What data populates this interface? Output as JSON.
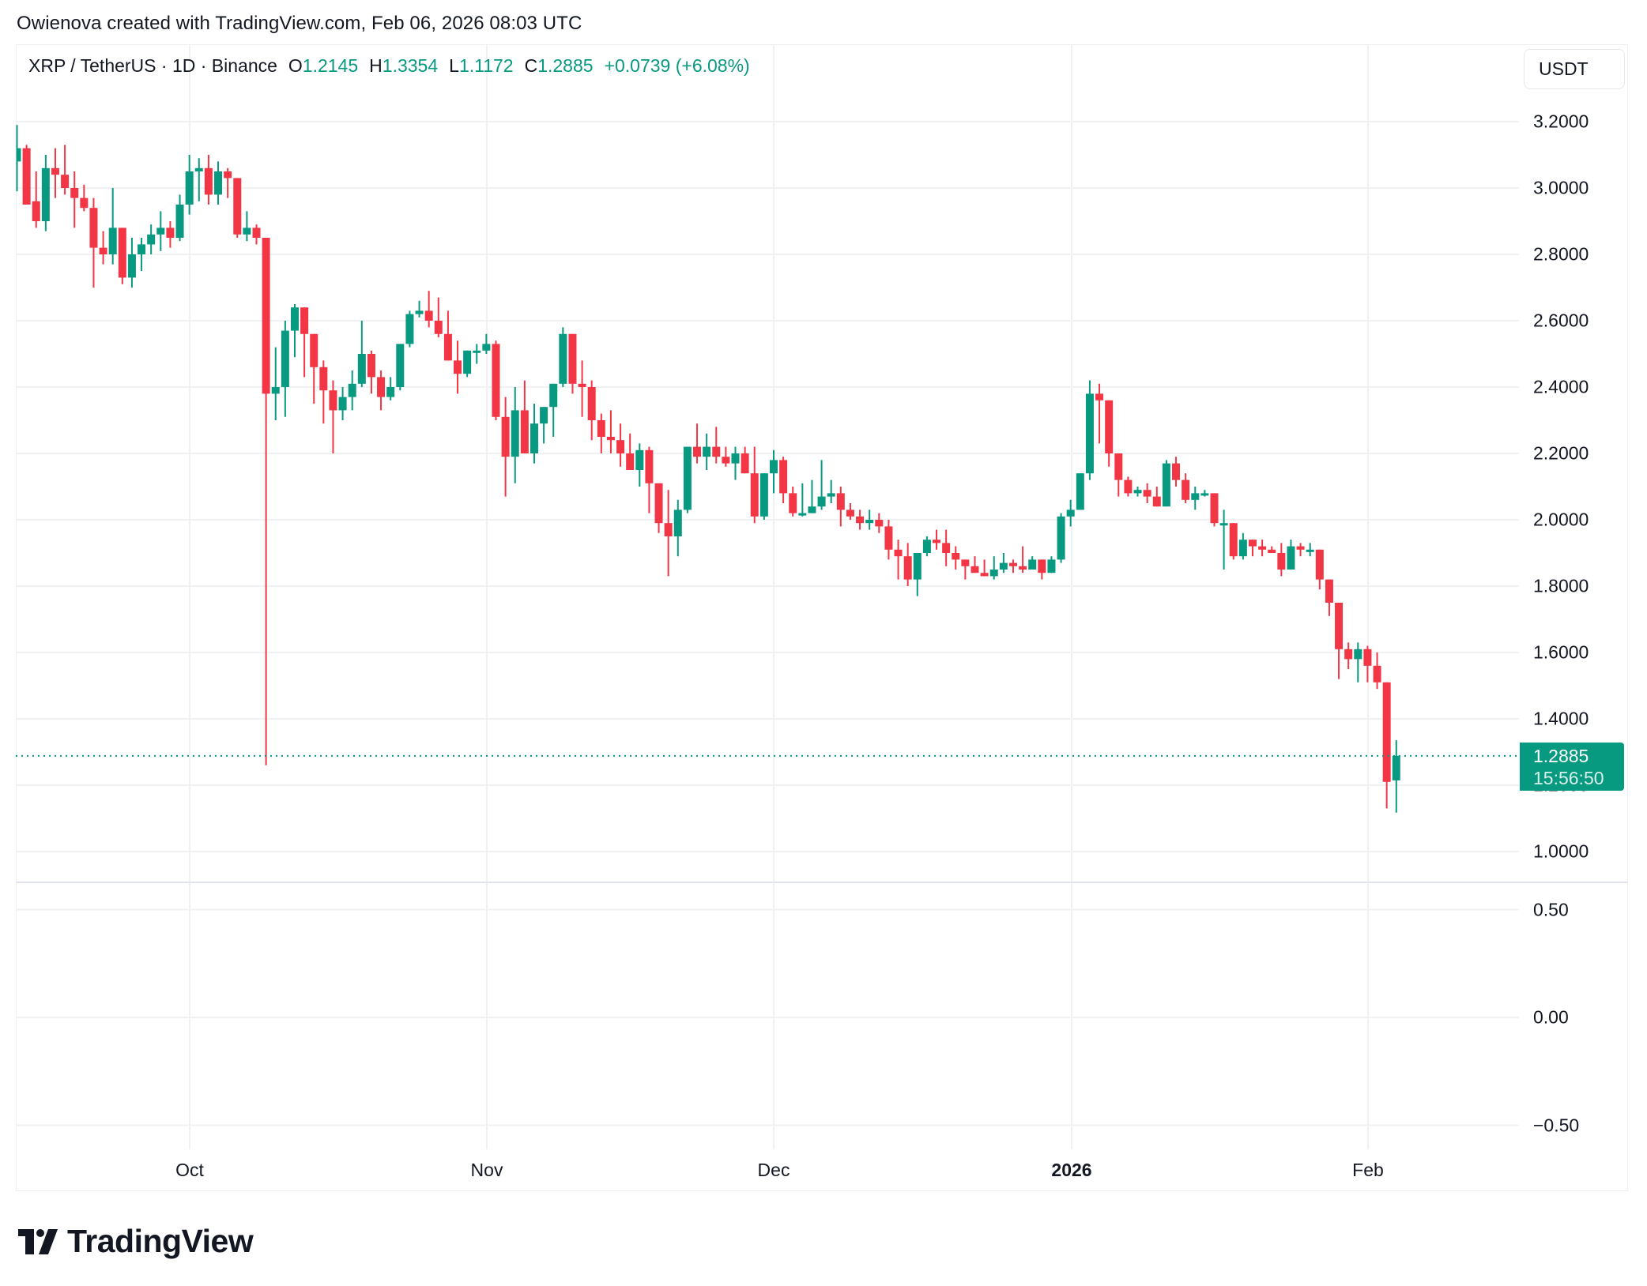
{
  "credit": "Owienova created with TradingView.com, Feb 06, 2026 08:03 UTC",
  "legend": {
    "symbol": "XRP / TetherUS · 1D · Binance",
    "o_label": "O",
    "o_value": "1.2145",
    "h_label": "H",
    "h_value": "1.3354",
    "l_label": "L",
    "l_value": "1.1172",
    "c_label": "C",
    "c_value": "1.2885",
    "change": "+0.0739 (+6.08%)"
  },
  "currency_button": "USDT",
  "last_price": {
    "price": "1.2885",
    "countdown": "15:56:50"
  },
  "price_axis": [
    "3.2000",
    "3.0000",
    "2.8000",
    "2.6000",
    "2.4000",
    "2.2000",
    "2.0000",
    "1.8000",
    "1.6000",
    "1.4000",
    "1.2000",
    "1.0000"
  ],
  "indicator_axis": [
    "0.50",
    "0.00",
    "−0.50"
  ],
  "time_axis": [
    {
      "label": "Oct",
      "bold": false
    },
    {
      "label": "Nov",
      "bold": false
    },
    {
      "label": "Dec",
      "bold": false
    },
    {
      "label": "2026",
      "bold": true
    },
    {
      "label": "Feb",
      "bold": false
    }
  ],
  "logo_text": "TradingView",
  "colors": {
    "up": "#089981",
    "down": "#F23645",
    "grid": "#f0f1f3",
    "text": "#131722"
  },
  "chart_data": {
    "type": "candlestick",
    "title": "XRP / TetherUS · 1D · Binance",
    "xlabel": "",
    "ylabel": "USDT",
    "ylim": [
      0.88,
      3.29
    ],
    "grid": true,
    "legend_position": "top-left",
    "start_date": "2025-09-13",
    "last": {
      "open": 1.2145,
      "high": 1.3354,
      "low": 1.1172,
      "close": 1.2885,
      "change": 0.0739,
      "change_pct": 6.08
    },
    "indicator_pane": {
      "ylim": [
        -0.6,
        0.6
      ],
      "ticks": [
        0.5,
        0.0,
        -0.5
      ],
      "values": []
    },
    "candles": [
      [
        3.08,
        3.19,
        2.99,
        3.12
      ],
      [
        3.12,
        3.13,
        2.95,
        2.95
      ],
      [
        2.96,
        3.05,
        2.88,
        2.9
      ],
      [
        2.9,
        3.1,
        2.87,
        3.06
      ],
      [
        3.06,
        3.12,
        2.97,
        3.04
      ],
      [
        3.04,
        3.13,
        2.98,
        3.0
      ],
      [
        3.0,
        3.05,
        2.88,
        2.97
      ],
      [
        2.97,
        3.01,
        2.93,
        2.94
      ],
      [
        2.94,
        2.97,
        2.7,
        2.82
      ],
      [
        2.82,
        2.87,
        2.77,
        2.8
      ],
      [
        2.8,
        3.0,
        2.77,
        2.88
      ],
      [
        2.88,
        2.88,
        2.71,
        2.73
      ],
      [
        2.73,
        2.85,
        2.7,
        2.8
      ],
      [
        2.8,
        2.85,
        2.75,
        2.83
      ],
      [
        2.83,
        2.89,
        2.8,
        2.86
      ],
      [
        2.86,
        2.93,
        2.81,
        2.88
      ],
      [
        2.88,
        2.9,
        2.82,
        2.85
      ],
      [
        2.85,
        2.98,
        2.84,
        2.95
      ],
      [
        2.95,
        3.1,
        2.92,
        3.05
      ],
      [
        3.05,
        3.09,
        2.96,
        3.06
      ],
      [
        3.06,
        3.1,
        2.95,
        2.98
      ],
      [
        2.98,
        3.08,
        2.95,
        3.05
      ],
      [
        3.05,
        3.06,
        2.97,
        3.03
      ],
      [
        3.03,
        3.01,
        2.85,
        2.86
      ],
      [
        2.86,
        2.93,
        2.84,
        2.88
      ],
      [
        2.88,
        2.89,
        2.83,
        2.85
      ],
      [
        2.85,
        2.84,
        1.26,
        2.38
      ],
      [
        2.38,
        2.52,
        2.3,
        2.4
      ],
      [
        2.4,
        2.6,
        2.31,
        2.57
      ],
      [
        2.57,
        2.65,
        2.49,
        2.64
      ],
      [
        2.64,
        2.62,
        2.43,
        2.56
      ],
      [
        2.56,
        2.55,
        2.35,
        2.46
      ],
      [
        2.46,
        2.48,
        2.29,
        2.39
      ],
      [
        2.39,
        2.42,
        2.2,
        2.33
      ],
      [
        2.33,
        2.4,
        2.3,
        2.37
      ],
      [
        2.37,
        2.45,
        2.33,
        2.41
      ],
      [
        2.41,
        2.6,
        2.4,
        2.5
      ],
      [
        2.5,
        2.51,
        2.38,
        2.43
      ],
      [
        2.43,
        2.45,
        2.33,
        2.37
      ],
      [
        2.37,
        2.43,
        2.36,
        2.4
      ],
      [
        2.4,
        2.53,
        2.39,
        2.53
      ],
      [
        2.53,
        2.63,
        2.52,
        2.62
      ],
      [
        2.62,
        2.66,
        2.61,
        2.63
      ],
      [
        2.63,
        2.69,
        2.58,
        2.6
      ],
      [
        2.6,
        2.67,
        2.55,
        2.56
      ],
      [
        2.56,
        2.63,
        2.51,
        2.48
      ],
      [
        2.48,
        2.54,
        2.38,
        2.44
      ],
      [
        2.44,
        2.51,
        2.43,
        2.51
      ],
      [
        2.51,
        2.53,
        2.47,
        2.51
      ],
      [
        2.51,
        2.56,
        2.5,
        2.53
      ],
      [
        2.53,
        2.54,
        2.3,
        2.31
      ],
      [
        2.31,
        2.37,
        2.07,
        2.19
      ],
      [
        2.19,
        2.4,
        2.11,
        2.33
      ],
      [
        2.33,
        2.42,
        2.2,
        2.2
      ],
      [
        2.2,
        2.35,
        2.17,
        2.29
      ],
      [
        2.29,
        2.34,
        2.23,
        2.34
      ],
      [
        2.34,
        2.38,
        2.25,
        2.41
      ],
      [
        2.41,
        2.58,
        2.4,
        2.56
      ],
      [
        2.56,
        2.54,
        2.38,
        2.41
      ],
      [
        2.41,
        2.48,
        2.31,
        2.4
      ],
      [
        2.4,
        2.42,
        2.24,
        2.3
      ],
      [
        2.3,
        2.32,
        2.2,
        2.25
      ],
      [
        2.25,
        2.33,
        2.2,
        2.24
      ],
      [
        2.24,
        2.29,
        2.16,
        2.2
      ],
      [
        2.2,
        2.26,
        2.16,
        2.15
      ],
      [
        2.15,
        2.23,
        2.1,
        2.21
      ],
      [
        2.21,
        2.22,
        2.02,
        2.11
      ],
      [
        2.11,
        2.08,
        1.96,
        1.99
      ],
      [
        1.99,
        2.09,
        1.83,
        1.95
      ],
      [
        1.95,
        2.06,
        1.89,
        2.03
      ],
      [
        2.03,
        2.13,
        2.02,
        2.22
      ],
      [
        2.22,
        2.29,
        2.17,
        2.19
      ],
      [
        2.19,
        2.26,
        2.15,
        2.22
      ],
      [
        2.22,
        2.28,
        2.17,
        2.19
      ],
      [
        2.19,
        2.22,
        2.16,
        2.17
      ],
      [
        2.17,
        2.22,
        2.12,
        2.2
      ],
      [
        2.2,
        2.22,
        2.17,
        2.14
      ],
      [
        2.14,
        2.22,
        1.99,
        2.01
      ],
      [
        2.01,
        2.13,
        2.0,
        2.14
      ],
      [
        2.14,
        2.21,
        2.08,
        2.18
      ],
      [
        2.18,
        2.19,
        2.05,
        2.08
      ],
      [
        2.08,
        2.1,
        2.01,
        2.02
      ],
      [
        2.02,
        2.11,
        2.01,
        2.02
      ],
      [
        2.02,
        2.12,
        2.02,
        2.04
      ],
      [
        2.04,
        2.18,
        2.03,
        2.07
      ],
      [
        2.07,
        2.12,
        2.05,
        2.08
      ],
      [
        2.08,
        2.1,
        1.98,
        2.03
      ],
      [
        2.03,
        2.05,
        2.0,
        2.01
      ],
      [
        2.01,
        2.03,
        1.97,
        1.99
      ],
      [
        1.99,
        2.03,
        1.97,
        2.0
      ],
      [
        2.0,
        2.02,
        1.96,
        1.98
      ],
      [
        1.98,
        2.0,
        1.88,
        1.91
      ],
      [
        1.91,
        1.94,
        1.82,
        1.89
      ],
      [
        1.89,
        1.93,
        1.8,
        1.82
      ],
      [
        1.82,
        1.89,
        1.77,
        1.9
      ],
      [
        1.9,
        1.95,
        1.89,
        1.94
      ],
      [
        1.94,
        1.97,
        1.91,
        1.93
      ],
      [
        1.93,
        1.97,
        1.86,
        1.9
      ],
      [
        1.9,
        1.92,
        1.85,
        1.88
      ],
      [
        1.88,
        1.88,
        1.82,
        1.86
      ],
      [
        1.86,
        1.89,
        1.84,
        1.84
      ],
      [
        1.84,
        1.88,
        1.83,
        1.83
      ],
      [
        1.83,
        1.89,
        1.82,
        1.85
      ],
      [
        1.85,
        1.9,
        1.84,
        1.87
      ],
      [
        1.87,
        1.88,
        1.84,
        1.86
      ],
      [
        1.86,
        1.92,
        1.84,
        1.85
      ],
      [
        1.85,
        1.89,
        1.85,
        1.88
      ],
      [
        1.88,
        1.88,
        1.82,
        1.84
      ],
      [
        1.84,
        1.89,
        1.84,
        1.88
      ],
      [
        1.88,
        2.02,
        1.87,
        2.01
      ],
      [
        2.01,
        2.06,
        1.98,
        2.03
      ],
      [
        2.03,
        2.14,
        2.03,
        2.14
      ],
      [
        2.14,
        2.42,
        2.12,
        2.38
      ],
      [
        2.38,
        2.41,
        2.23,
        2.36
      ],
      [
        2.36,
        2.34,
        2.16,
        2.2
      ],
      [
        2.2,
        2.16,
        2.07,
        2.12
      ],
      [
        2.12,
        2.13,
        2.07,
        2.08
      ],
      [
        2.08,
        2.1,
        2.07,
        2.09
      ],
      [
        2.09,
        2.11,
        2.05,
        2.07
      ],
      [
        2.07,
        2.1,
        2.04,
        2.04
      ],
      [
        2.04,
        2.18,
        2.04,
        2.17
      ],
      [
        2.17,
        2.19,
        2.1,
        2.12
      ],
      [
        2.12,
        2.14,
        2.05,
        2.06
      ],
      [
        2.06,
        2.1,
        2.03,
        2.08
      ],
      [
        2.08,
        2.09,
        2.07,
        2.08
      ],
      [
        2.08,
        2.07,
        1.98,
        1.99
      ],
      [
        1.99,
        2.03,
        1.85,
        1.99
      ],
      [
        1.99,
        1.99,
        1.88,
        1.89
      ],
      [
        1.89,
        1.96,
        1.88,
        1.94
      ],
      [
        1.94,
        1.94,
        1.89,
        1.92
      ],
      [
        1.92,
        1.94,
        1.89,
        1.91
      ],
      [
        1.91,
        1.92,
        1.9,
        1.9
      ],
      [
        1.9,
        1.93,
        1.83,
        1.85
      ],
      [
        1.85,
        1.94,
        1.85,
        1.92
      ],
      [
        1.92,
        1.93,
        1.89,
        1.91
      ],
      [
        1.91,
        1.93,
        1.89,
        1.91
      ],
      [
        1.91,
        1.9,
        1.79,
        1.82
      ],
      [
        1.82,
        1.78,
        1.71,
        1.75
      ],
      [
        1.75,
        1.73,
        1.52,
        1.61
      ],
      [
        1.61,
        1.63,
        1.55,
        1.58
      ],
      [
        1.58,
        1.63,
        1.51,
        1.61
      ],
      [
        1.61,
        1.62,
        1.51,
        1.56
      ],
      [
        1.56,
        1.6,
        1.49,
        1.51
      ],
      [
        1.51,
        1.51,
        1.13,
        1.21
      ],
      [
        1.2145,
        1.3354,
        1.1172,
        1.2885
      ]
    ]
  }
}
